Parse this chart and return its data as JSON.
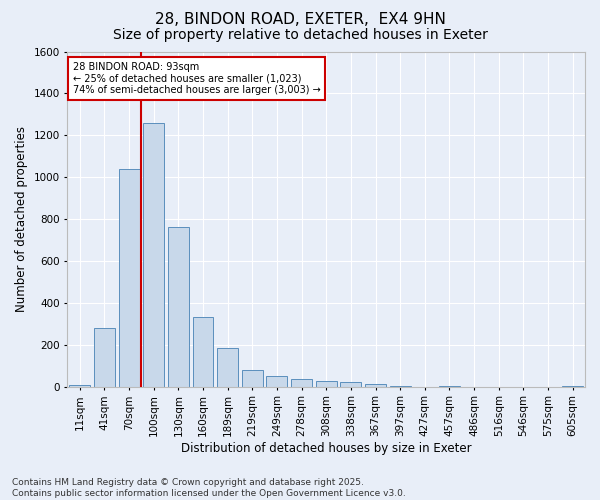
{
  "title_line1": "28, BINDON ROAD, EXETER,  EX4 9HN",
  "title_line2": "Size of property relative to detached houses in Exeter",
  "xlabel": "Distribution of detached houses by size in Exeter",
  "ylabel": "Number of detached properties",
  "categories": [
    "11sqm",
    "41sqm",
    "70sqm",
    "100sqm",
    "130sqm",
    "160sqm",
    "189sqm",
    "219sqm",
    "249sqm",
    "278sqm",
    "308sqm",
    "338sqm",
    "367sqm",
    "397sqm",
    "427sqm",
    "457sqm",
    "486sqm",
    "516sqm",
    "546sqm",
    "575sqm",
    "605sqm"
  ],
  "values": [
    10,
    280,
    1040,
    1260,
    760,
    335,
    185,
    80,
    50,
    35,
    25,
    20,
    15,
    5,
    0,
    5,
    0,
    0,
    0,
    0,
    5
  ],
  "bar_color": "#c8d8ea",
  "bar_edgecolor": "#5b8fbd",
  "vline_color": "#cc0000",
  "annotation_text": "28 BINDON ROAD: 93sqm\n← 25% of detached houses are smaller (1,023)\n74% of semi-detached houses are larger (3,003) →",
  "annotation_box_edgecolor": "#cc0000",
  "ylim": [
    0,
    1600
  ],
  "yticks": [
    0,
    200,
    400,
    600,
    800,
    1000,
    1200,
    1400,
    1600
  ],
  "footnote": "Contains HM Land Registry data © Crown copyright and database right 2025.\nContains public sector information licensed under the Open Government Licence v3.0.",
  "background_color": "#e8eef8",
  "plot_background": "#e8eef8",
  "grid_color": "#ffffff",
  "title_fontsize": 11,
  "subtitle_fontsize": 10,
  "axis_label_fontsize": 8.5,
  "tick_fontsize": 7.5,
  "footnote_fontsize": 6.5,
  "vline_bar_index": 3
}
